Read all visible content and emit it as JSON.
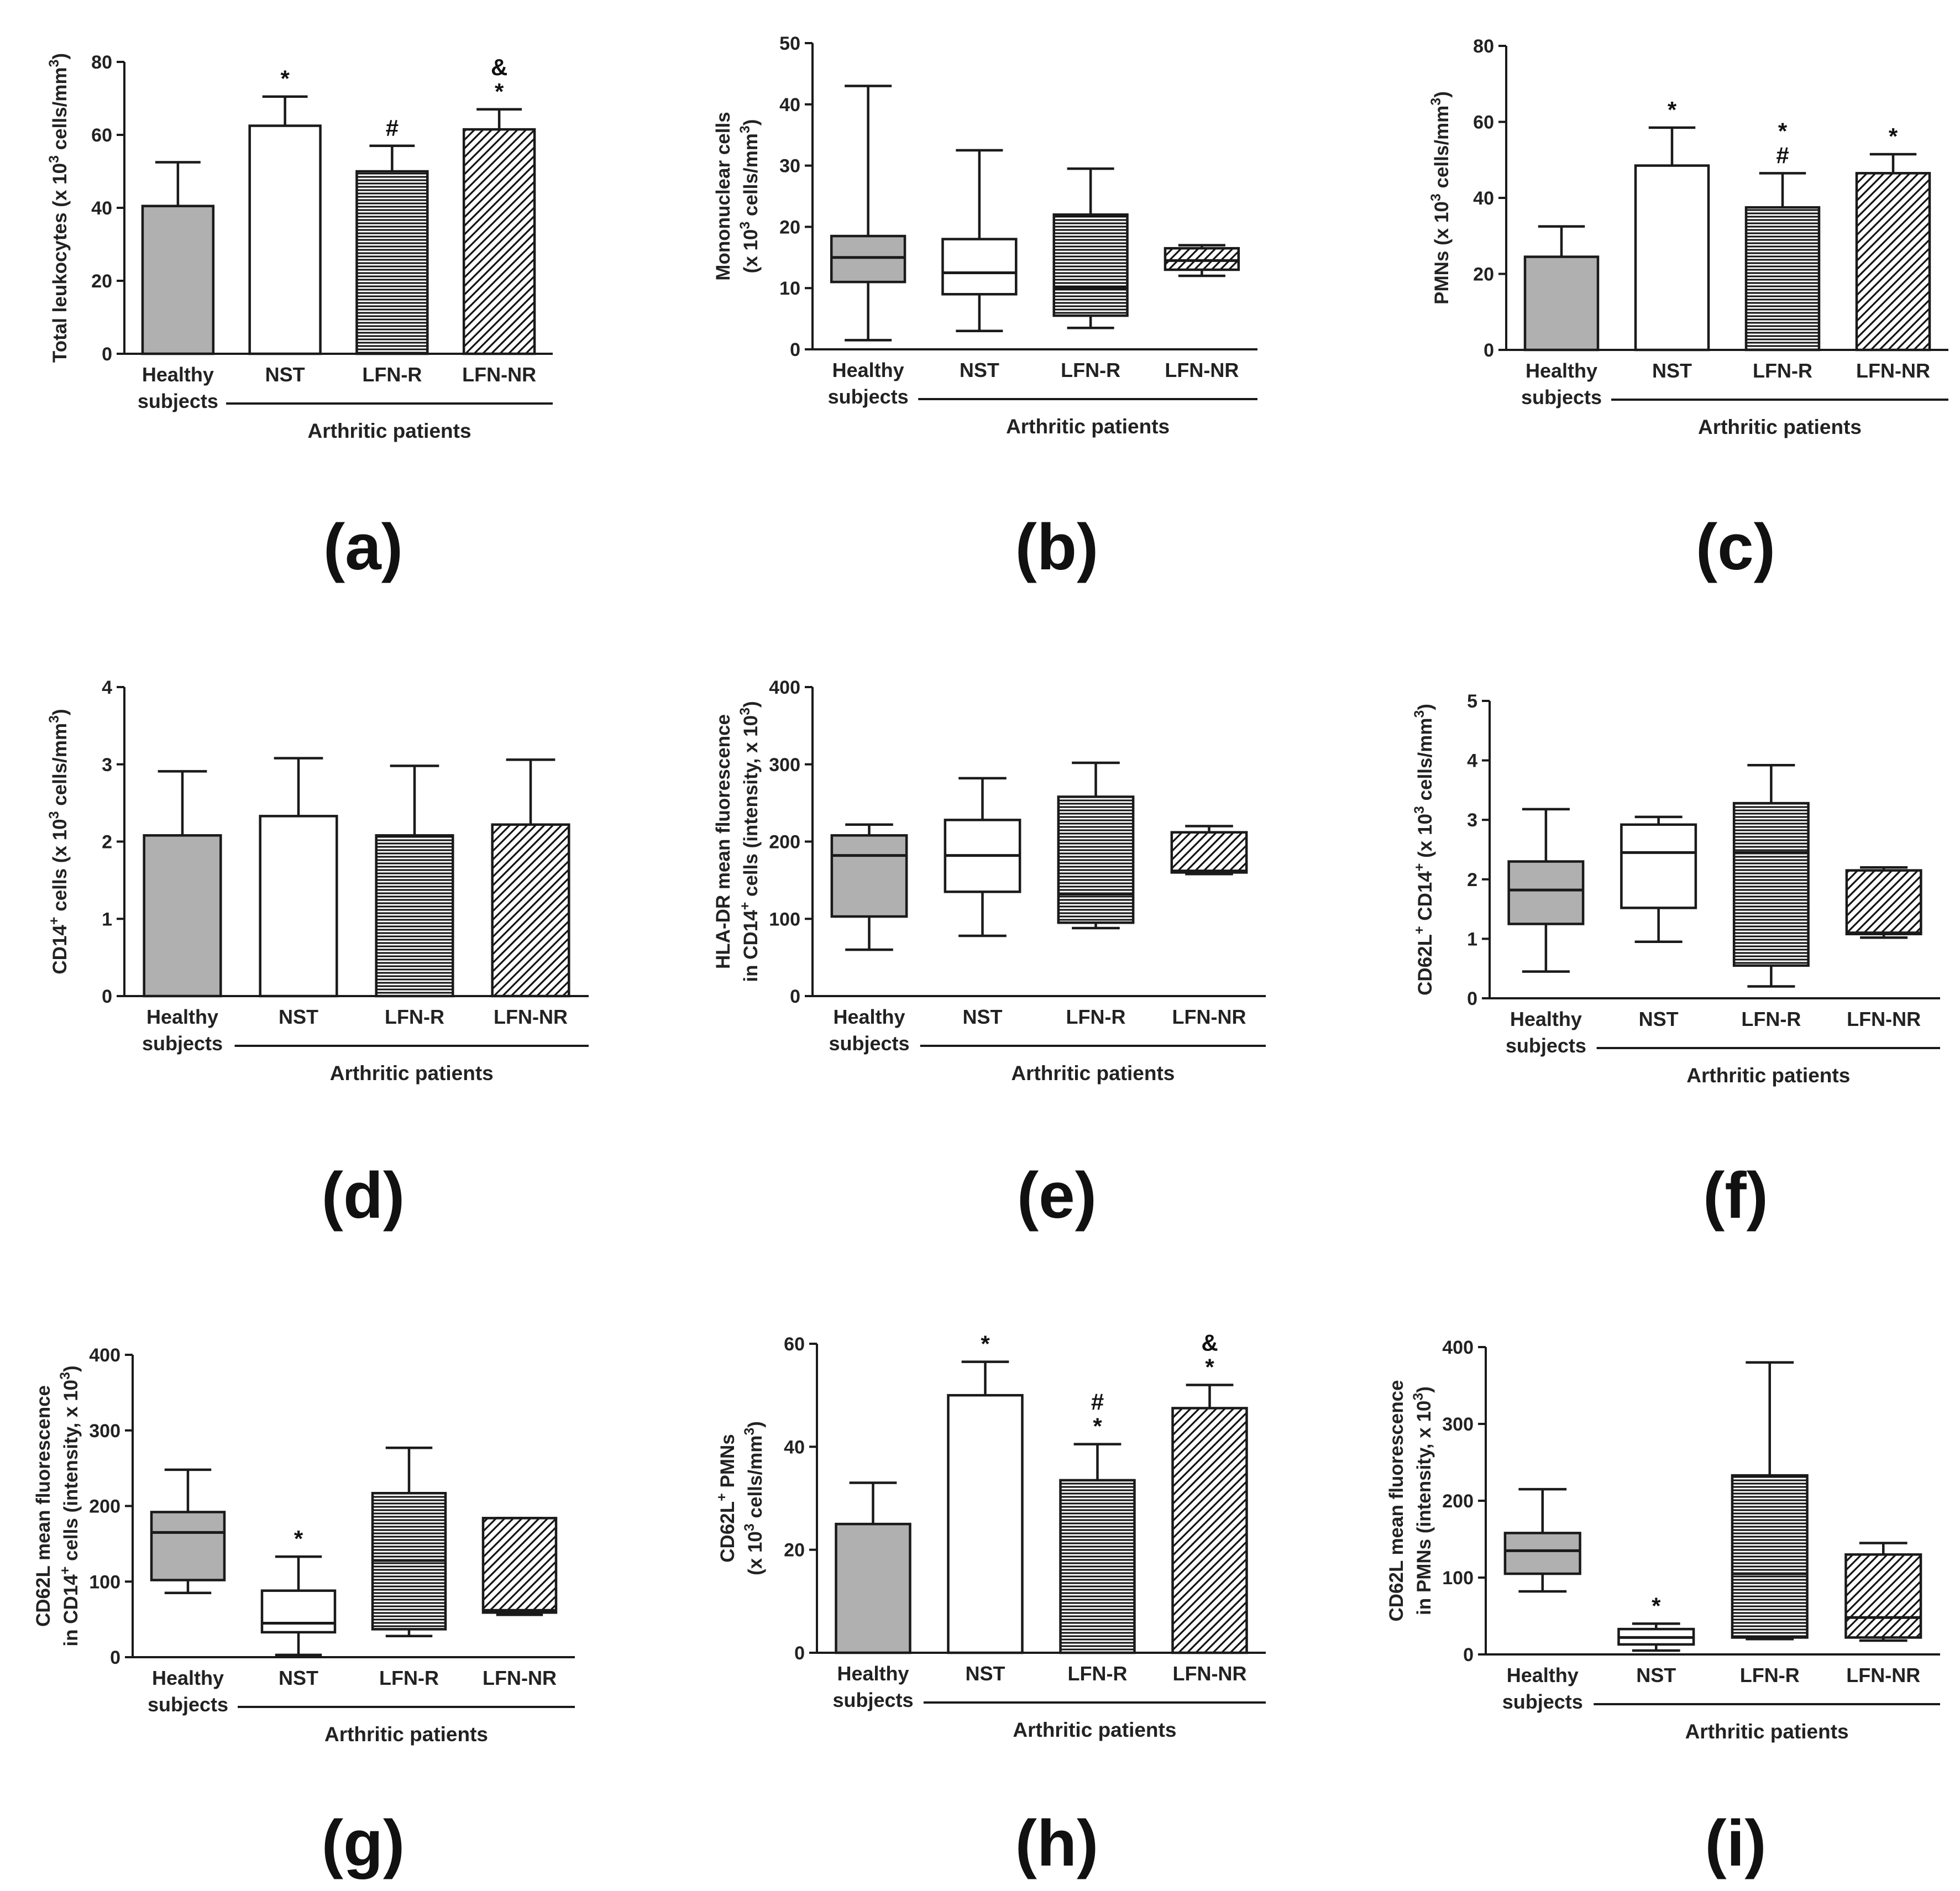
{
  "figure": {
    "colors": {
      "healthy_fill": "#b0b0b0",
      "axis": "#1a1a1a",
      "background": "#ffffff"
    },
    "fill_styles": [
      "gray",
      "white",
      "horizontal-lines",
      "diagonal-lines"
    ]
  },
  "chart_data": [
    {
      "panel": "(a)",
      "type": "bar",
      "ylabel": "Total leukocytes (x 10 3 cells/mm 3)",
      "ylabel_parts": [
        "Total leukocytes (x 10",
        "3",
        " cells/mm",
        "3",
        ")"
      ],
      "ylim": [
        0,
        80
      ],
      "yticks": [
        "0",
        "20",
        "40",
        "60",
        "80"
      ],
      "categories": [
        "Healthy subjects",
        "NST",
        "LFN-R",
        "LFN-NR"
      ],
      "category_lines": [
        [
          "Healthy",
          "subjects"
        ],
        [
          "NST"
        ],
        [
          "LFN-R"
        ],
        [
          "LFN-NR"
        ]
      ],
      "group_label": "Arthritic patients",
      "values": [
        40.5,
        62.5,
        50,
        61.5
      ],
      "errors": [
        12,
        8,
        7,
        5.5
      ],
      "annotations": [
        [],
        [
          "*"
        ],
        [
          "#"
        ],
        [
          "&",
          "*"
        ]
      ]
    },
    {
      "panel": "(b)",
      "type": "box",
      "ylabel": "Mononuclear cells (x 10 3 cells/mm 3)",
      "ylabel_line1": "Mononuclear cells",
      "ylabel_parts": [
        "(x 10",
        "3",
        " cells/mm",
        "3",
        ")"
      ],
      "ylim": [
        0,
        50
      ],
      "yticks": [
        "0",
        "10",
        "20",
        "30",
        "40",
        "50"
      ],
      "categories": [
        "Healthy subjects",
        "NST",
        "LFN-R",
        "LFN-NR"
      ],
      "category_lines": [
        [
          "Healthy",
          "subjects"
        ],
        [
          "NST"
        ],
        [
          "LFN-R"
        ],
        [
          "LFN-NR"
        ]
      ],
      "group_label": "Arthritic patients",
      "boxes": [
        {
          "min": 1.5,
          "q1": 11,
          "median": 15,
          "q3": 18.5,
          "max": 43
        },
        {
          "min": 3,
          "q1": 9,
          "median": 12.5,
          "q3": 18,
          "max": 32.5
        },
        {
          "min": 3.5,
          "q1": 5.5,
          "median": 10,
          "q3": 22,
          "max": 29.5
        },
        {
          "min": 12,
          "q1": 13,
          "median": 14.5,
          "q3": 16.5,
          "max": 17
        }
      ],
      "annotations": [
        [],
        [],
        [],
        []
      ]
    },
    {
      "panel": "(c)",
      "type": "bar",
      "ylabel": "PMNs (x 10 3 cells/mm 3)",
      "ylabel_parts": [
        "PMNs (x 10",
        "3",
        " cells/mm",
        "3",
        ")"
      ],
      "ylim": [
        0,
        80
      ],
      "yticks": [
        "0",
        "20",
        "40",
        "60",
        "80"
      ],
      "categories": [
        "Healthy subjects",
        "NST",
        "LFN-R",
        "LFN-NR"
      ],
      "category_lines": [
        [
          "Healthy",
          "subjects"
        ],
        [
          "NST"
        ],
        [
          "LFN-R"
        ],
        [
          "LFN-NR"
        ]
      ],
      "group_label": "Arthritic patients",
      "values": [
        24.5,
        48.5,
        37.5,
        46.5
      ],
      "errors": [
        8,
        10,
        9,
        5
      ],
      "annotations": [
        [],
        [
          "*"
        ],
        [
          "*",
          "#"
        ],
        [
          "*"
        ]
      ]
    },
    {
      "panel": "(d)",
      "type": "bar",
      "ylabel": "CD14+ cells (x 10 3 cells/mm 3)",
      "ylabel_parts": [
        "CD14",
        "+",
        " cells (x 10",
        "3",
        " cells/mm",
        "3",
        ")"
      ],
      "ylim": [
        0,
        4
      ],
      "yticks": [
        "0",
        "1",
        "2",
        "3",
        "4"
      ],
      "categories": [
        "Healthy subjects",
        "NST",
        "LFN-R",
        "LFN-NR"
      ],
      "category_lines": [
        [
          "Healthy",
          "subjects"
        ],
        [
          "NST"
        ],
        [
          "LFN-R"
        ],
        [
          "LFN-NR"
        ]
      ],
      "group_label": "Arthritic patients",
      "values": [
        2.08,
        2.33,
        2.08,
        2.22
      ],
      "errors": [
        0.83,
        0.75,
        0.9,
        0.84
      ],
      "annotations": [
        [],
        [],
        [],
        []
      ]
    },
    {
      "panel": "(e)",
      "type": "box",
      "ylabel": "HLA-DR mean fluorescence in CD14+ cells (intensity, x 10 3)",
      "ylabel_line1": "HLA-DR mean fluorescence",
      "ylabel_parts": [
        "in CD14",
        "+",
        " cells (intensity, x 10",
        "3",
        ")"
      ],
      "ylim": [
        0,
        400
      ],
      "yticks": [
        "0",
        "100",
        "200",
        "300",
        "400"
      ],
      "categories": [
        "Healthy subjects",
        "NST",
        "LFN-R",
        "LFN-NR"
      ],
      "category_lines": [
        [
          "Healthy",
          "subjects"
        ],
        [
          "NST"
        ],
        [
          "LFN-R"
        ],
        [
          "LFN-NR"
        ]
      ],
      "group_label": "Arthritic patients",
      "boxes": [
        {
          "min": 60,
          "q1": 103,
          "median": 182,
          "q3": 208,
          "max": 222
        },
        {
          "min": 78,
          "q1": 135,
          "median": 182,
          "q3": 228,
          "max": 282
        },
        {
          "min": 88,
          "q1": 95,
          "median": 132,
          "q3": 258,
          "max": 302
        },
        {
          "min": 158,
          "q1": 160,
          "median": 162,
          "q3": 212,
          "max": 220
        }
      ],
      "annotations": [
        [],
        [],
        [],
        []
      ]
    },
    {
      "panel": "(f)",
      "type": "box",
      "ylabel": "CD62L+ CD14+ (x 10 3 cells/mm 3)",
      "ylabel_parts": [
        "CD62L",
        "+",
        " CD14",
        "+",
        " (x 10",
        "3",
        " cells/mm",
        "3",
        ")"
      ],
      "ylim": [
        0,
        5
      ],
      "yticks": [
        "0",
        "1",
        "2",
        "3",
        "4",
        "5"
      ],
      "categories": [
        "Healthy subjects",
        "NST",
        "LFN-R",
        "LFN-NR"
      ],
      "category_lines": [
        [
          "Healthy",
          "subjects"
        ],
        [
          "NST"
        ],
        [
          "LFN-R"
        ],
        [
          "LFN-NR"
        ]
      ],
      "group_label": "Arthritic patients",
      "boxes": [
        {
          "min": 0.45,
          "q1": 1.25,
          "median": 1.82,
          "q3": 2.3,
          "max": 3.18
        },
        {
          "min": 0.95,
          "q1": 1.52,
          "median": 2.45,
          "q3": 2.92,
          "max": 3.05
        },
        {
          "min": 0.2,
          "q1": 0.55,
          "median": 2.45,
          "q3": 3.28,
          "max": 3.92
        },
        {
          "min": 1.02,
          "q1": 1.08,
          "median": 1.1,
          "q3": 2.15,
          "max": 2.2
        }
      ],
      "annotations": [
        [],
        [],
        [],
        []
      ]
    },
    {
      "panel": "(g)",
      "type": "box",
      "ylabel": "CD62L mean fluorescence in CD14+ cells (intensity, x 10 3)",
      "ylabel_line1": "CD62L mean fluorescence",
      "ylabel_parts": [
        "in CD14",
        "+",
        " cells (intensity, x 10",
        "3",
        ")"
      ],
      "ylim": [
        0,
        400
      ],
      "yticks": [
        "0",
        "100",
        "200",
        "300",
        "400"
      ],
      "categories": [
        "Healthy subjects",
        "NST",
        "LFN-R",
        "LFN-NR"
      ],
      "category_lines": [
        [
          "Healthy",
          "subjects"
        ],
        [
          "NST"
        ],
        [
          "LFN-R"
        ],
        [
          "LFN-NR"
        ]
      ],
      "group_label": "Arthritic patients",
      "boxes": [
        {
          "min": 85,
          "q1": 102,
          "median": 165,
          "q3": 192,
          "max": 248
        },
        {
          "min": 3,
          "q1": 33,
          "median": 45,
          "q3": 88,
          "max": 133
        },
        {
          "min": 28,
          "q1": 37,
          "median": 128,
          "q3": 217,
          "max": 277
        },
        {
          "min": 56,
          "q1": 59,
          "median": 62,
          "q3": 184,
          "max": 184
        }
      ],
      "annotations": [
        [],
        [
          "*"
        ],
        [],
        []
      ]
    },
    {
      "panel": "(h)",
      "type": "bar",
      "ylabel": "CD62L+ PMNs (x 10 3 cells/mm 3)",
      "ylabel_line1_parts": [
        "CD62L",
        "+",
        " PMNs"
      ],
      "ylabel_parts": [
        "(x 10",
        "3",
        " cells/mm",
        "3",
        ")"
      ],
      "ylim": [
        0,
        60
      ],
      "yticks": [
        "0",
        "20",
        "40",
        "60"
      ],
      "categories": [
        "Healthy subjects",
        "NST",
        "LFN-R",
        "LFN-NR"
      ],
      "category_lines": [
        [
          "Healthy",
          "subjects"
        ],
        [
          "NST"
        ],
        [
          "LFN-R"
        ],
        [
          "LFN-NR"
        ]
      ],
      "group_label": "Arthritic patients",
      "values": [
        25,
        50,
        33.5,
        47.5
      ],
      "errors": [
        8,
        6.5,
        7,
        4.5
      ],
      "annotations": [
        [],
        [
          "*"
        ],
        [
          "#",
          "*"
        ],
        [
          "&",
          "*"
        ]
      ]
    },
    {
      "panel": "(i)",
      "type": "box",
      "ylabel": "CD62L mean fluorescence in PMNs (intensity, x 10 3)",
      "ylabel_line1": "CD62L mean fluorescence",
      "ylabel_parts": [
        "in PMNs (intensity, x 10",
        "3",
        ")"
      ],
      "ylim": [
        0,
        400
      ],
      "yticks": [
        "0",
        "100",
        "200",
        "300",
        "400"
      ],
      "categories": [
        "Healthy subjects",
        "NST",
        "LFN-R",
        "LFN-NR"
      ],
      "category_lines": [
        [
          "Healthy",
          "subjects"
        ],
        [
          "NST"
        ],
        [
          "LFN-R"
        ],
        [
          "LFN-NR"
        ]
      ],
      "group_label": "Arthritic patients",
      "boxes": [
        {
          "min": 82,
          "q1": 105,
          "median": 135,
          "q3": 158,
          "max": 215
        },
        {
          "min": 5,
          "q1": 13,
          "median": 22,
          "q3": 33,
          "max": 40
        },
        {
          "min": 20,
          "q1": 22,
          "median": 105,
          "q3": 233,
          "max": 380
        },
        {
          "min": 18,
          "q1": 22,
          "median": 48,
          "q3": 130,
          "max": 145
        }
      ],
      "annotations": [
        [],
        [
          "*"
        ],
        [],
        []
      ]
    }
  ]
}
